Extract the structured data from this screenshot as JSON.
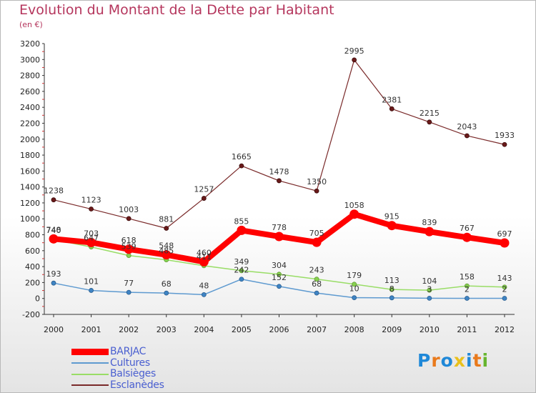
{
  "title": "Evolution du Montant de la Dette par Habitant",
  "subtitle": "(en €)",
  "logo": {
    "letters": [
      "P",
      "r",
      "o",
      "x",
      "i",
      "t",
      "i"
    ],
    "colors": [
      "#1f88d8",
      "#e97a1c",
      "#1f88d8",
      "#e9c01c",
      "#1f88d8",
      "#e97a1c",
      "#66b52e"
    ]
  },
  "chart_data": {
    "type": "line",
    "title": "Evolution du Montant de la Dette par Habitant",
    "subtitle": "(en €)",
    "x": [
      "2000",
      "2001",
      "2002",
      "2003",
      "2004",
      "2005",
      "2006",
      "2007",
      "2008",
      "2009",
      "2010",
      "2011",
      "2012"
    ],
    "ylim": [
      -200,
      3200
    ],
    "yticks": [
      "-200",
      "0",
      "200",
      "400",
      "600",
      "800",
      "1000",
      "1200",
      "1400",
      "1600",
      "1800",
      "2000",
      "2200",
      "2400",
      "2600",
      "2800",
      "3000",
      "3200"
    ],
    "grid": false,
    "legend": "bottom-left",
    "series": [
      {
        "name": "BARJAC",
        "color": "#ff0000",
        "values": [
          748,
          703,
          618,
          548,
          460,
          855,
          778,
          705,
          1058,
          915,
          839,
          767,
          697
        ],
        "labels": [
          "748",
          "703",
          "618",
          "548",
          "460",
          "855",
          "778",
          "705",
          "1058",
          "915",
          "839",
          "767",
          "697"
        ]
      },
      {
        "name": "Cultures",
        "color": "#5e9ad0",
        "values": [
          193,
          101,
          77,
          68,
          48,
          242,
          152,
          68,
          10,
          8,
          3,
          2,
          2
        ],
        "labels": [
          "193",
          "101",
          "77",
          "68",
          "48",
          "242",
          "152",
          "68",
          "10",
          "8",
          "3",
          "2",
          "2"
        ]
      },
      {
        "name": "Balsièges",
        "color": "#99dd66",
        "values": [
          740,
          647,
          539,
          485,
          411,
          349,
          304,
          243,
          179,
          113,
          104,
          158,
          143
        ],
        "labels": [
          "740",
          "647",
          "539",
          "485",
          "411",
          "349",
          "304",
          "243",
          "179",
          "113",
          "104",
          "158",
          "143"
        ]
      },
      {
        "name": "Esclanèdes",
        "color": "#7a2a2a",
        "values": [
          1238,
          1123,
          1003,
          881,
          1257,
          1665,
          1478,
          1350,
          2995,
          2381,
          2215,
          2043,
          1933
        ],
        "labels": [
          "1238",
          "1123",
          "1003",
          "881",
          "1257",
          "1665",
          "1478",
          "1350",
          "2995",
          "2381",
          "2215",
          "2043",
          "1933"
        ]
      }
    ]
  }
}
